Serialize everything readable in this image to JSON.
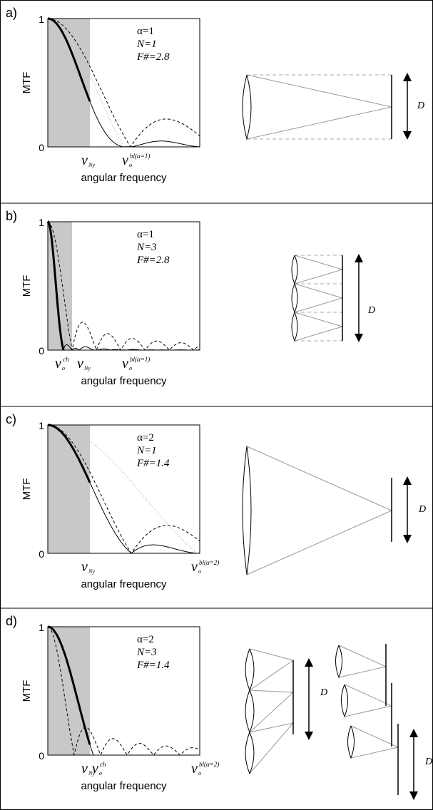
{
  "panels": [
    {
      "label": "a)",
      "y_label": "MTF",
      "y_max": "1",
      "y_min": "0",
      "x_label": "angular frequency",
      "params": [
        "α=1",
        "N=1",
        "F#=2.8"
      ],
      "markers": [
        {
          "base": "ν",
          "sub": "Ny"
        },
        {
          "base": "ν",
          "sub": "o",
          "sup": "bl(α=1)"
        }
      ],
      "aperture_labels": [
        "D"
      ]
    },
    {
      "label": "b)",
      "y_label": "MTF",
      "y_max": "1",
      "y_min": "0",
      "x_label": "angular frequency",
      "params": [
        "α=1",
        "N=3",
        "F#=2.8"
      ],
      "markers": [
        {
          "base": "ν",
          "sub": "o",
          "sup": "ch"
        },
        {
          "base": "ν",
          "sub": "Ny"
        },
        {
          "base": "ν",
          "sub": "o",
          "sup": "bl(α=1)"
        }
      ],
      "aperture_labels": [
        "D"
      ]
    },
    {
      "label": "c)",
      "y_label": "MTF",
      "y_max": "1",
      "y_min": "0",
      "x_label": "angular frequency",
      "params": [
        "α=2",
        "N=1",
        "F#=1.4"
      ],
      "markers": [
        {
          "base": "ν",
          "sub": "Ny"
        },
        {
          "base": "ν",
          "sub": "o",
          "sup": "bl(α=2)"
        }
      ],
      "aperture_labels": [
        "D"
      ]
    },
    {
      "label": "d)",
      "y_label": "MTF",
      "y_max": "1",
      "y_min": "0",
      "x_label": "angular frequency",
      "params": [
        "α=2",
        "N=3",
        "F#=1.4"
      ],
      "markers": [
        {
          "base": "ν",
          "sub": "Ny"
        },
        {
          "base": "ν",
          "sub": "o",
          "sup": "ch"
        },
        {
          "base": "ν",
          "sub": "o",
          "sup": "bl(α=2)"
        }
      ],
      "aperture_labels": [
        "D",
        "D"
      ]
    }
  ]
}
